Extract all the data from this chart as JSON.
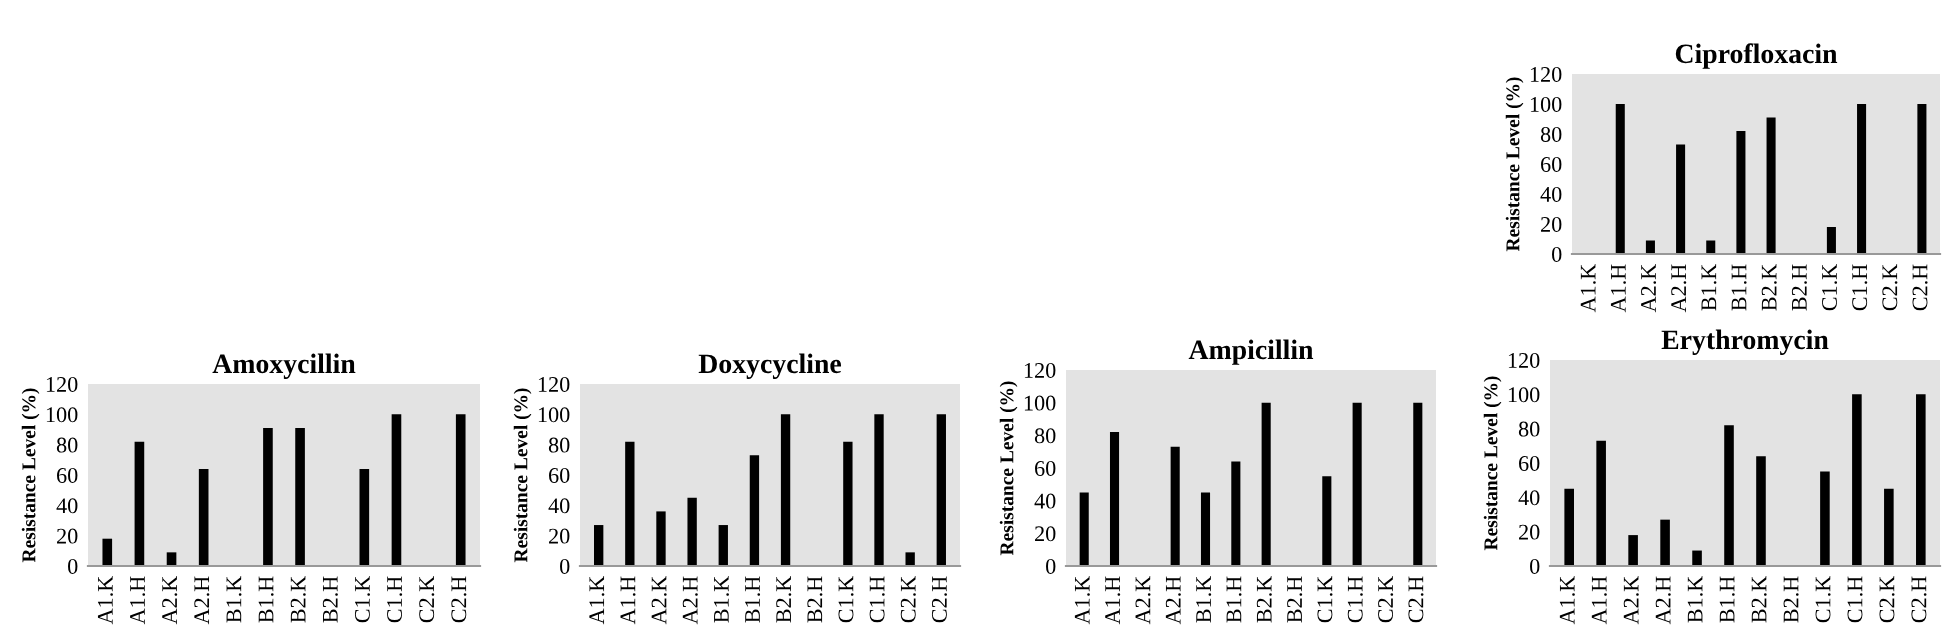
{
  "chart_data": [
    {
      "type": "bar",
      "title": "Ciprofloxacin",
      "ylabel": "Resistance Level (%)",
      "categories": [
        "A1.K",
        "A1.H",
        "A2.K",
        "A2.H",
        "B1.K",
        "B1.H",
        "B2.K",
        "B2.H",
        "C1.K",
        "C1.H",
        "C2.K",
        "C2.H"
      ],
      "values": [
        0,
        100,
        9,
        73,
        9,
        82,
        91,
        0,
        18,
        100,
        0,
        100
      ],
      "color": "#000000",
      "ylim": [
        0,
        120
      ],
      "yticks": [
        0,
        20,
        40,
        60,
        80,
        100,
        120
      ]
    },
    {
      "type": "bar",
      "title": "Amoxycillin",
      "ylabel": "Resistance Level (%)",
      "categories": [
        "A1.K",
        "A1.H",
        "A2.K",
        "A2.H",
        "B1.K",
        "B1.H",
        "B2.K",
        "B2.H",
        "C1.K",
        "C1.H",
        "C2.K",
        "C2.H"
      ],
      "values": [
        18,
        82,
        9,
        64,
        0,
        91,
        91,
        0,
        64,
        100,
        0,
        100
      ],
      "color": "#000000",
      "ylim": [
        0,
        120
      ],
      "yticks": [
        0,
        20,
        40,
        60,
        80,
        100,
        120
      ]
    },
    {
      "type": "bar",
      "title": "Doxycycline",
      "ylabel": "Resistance Level (%)",
      "categories": [
        "A1.K",
        "A1.H",
        "A2.K",
        "A2.H",
        "B1.K",
        "B1.H",
        "B2.K",
        "B2.H",
        "C1.K",
        "C1.H",
        "C2.K",
        "C2.H"
      ],
      "values": [
        27,
        82,
        36,
        45,
        27,
        73,
        100,
        0,
        82,
        100,
        9,
        100
      ],
      "color": "#000000",
      "ylim": [
        0,
        120
      ],
      "yticks": [
        0,
        20,
        40,
        60,
        80,
        100,
        120
      ]
    },
    {
      "type": "bar",
      "title": "Ampicillin",
      "ylabel": "Resistance Level (%)",
      "categories": [
        "A1.K",
        "A1.H",
        "A2.K",
        "A2.H",
        "B1.K",
        "B1.H",
        "B2.K",
        "B2.H",
        "C1.K",
        "C1.H",
        "C2.K",
        "C2.H"
      ],
      "values": [
        45,
        82,
        0,
        73,
        45,
        64,
        100,
        0,
        55,
        100,
        0,
        100
      ],
      "color": "#000000",
      "ylim": [
        0,
        120
      ],
      "yticks": [
        0,
        20,
        40,
        60,
        80,
        100,
        120
      ]
    },
    {
      "type": "bar",
      "title": "Erythromycin",
      "ylabel": "Resistance Level (%)",
      "categories": [
        "A1.K",
        "A1.H",
        "A2.K",
        "A2.H",
        "B1.K",
        "B1.H",
        "B2.K",
        "B2.H",
        "C1.K",
        "C1.H",
        "C2.K",
        "C2.H"
      ],
      "values": [
        45,
        73,
        18,
        27,
        9,
        82,
        64,
        0,
        55,
        100,
        45,
        100
      ],
      "color": "#000000",
      "ylim": [
        0,
        120
      ],
      "yticks": [
        0,
        20,
        40,
        60,
        80,
        100,
        120
      ]
    }
  ]
}
